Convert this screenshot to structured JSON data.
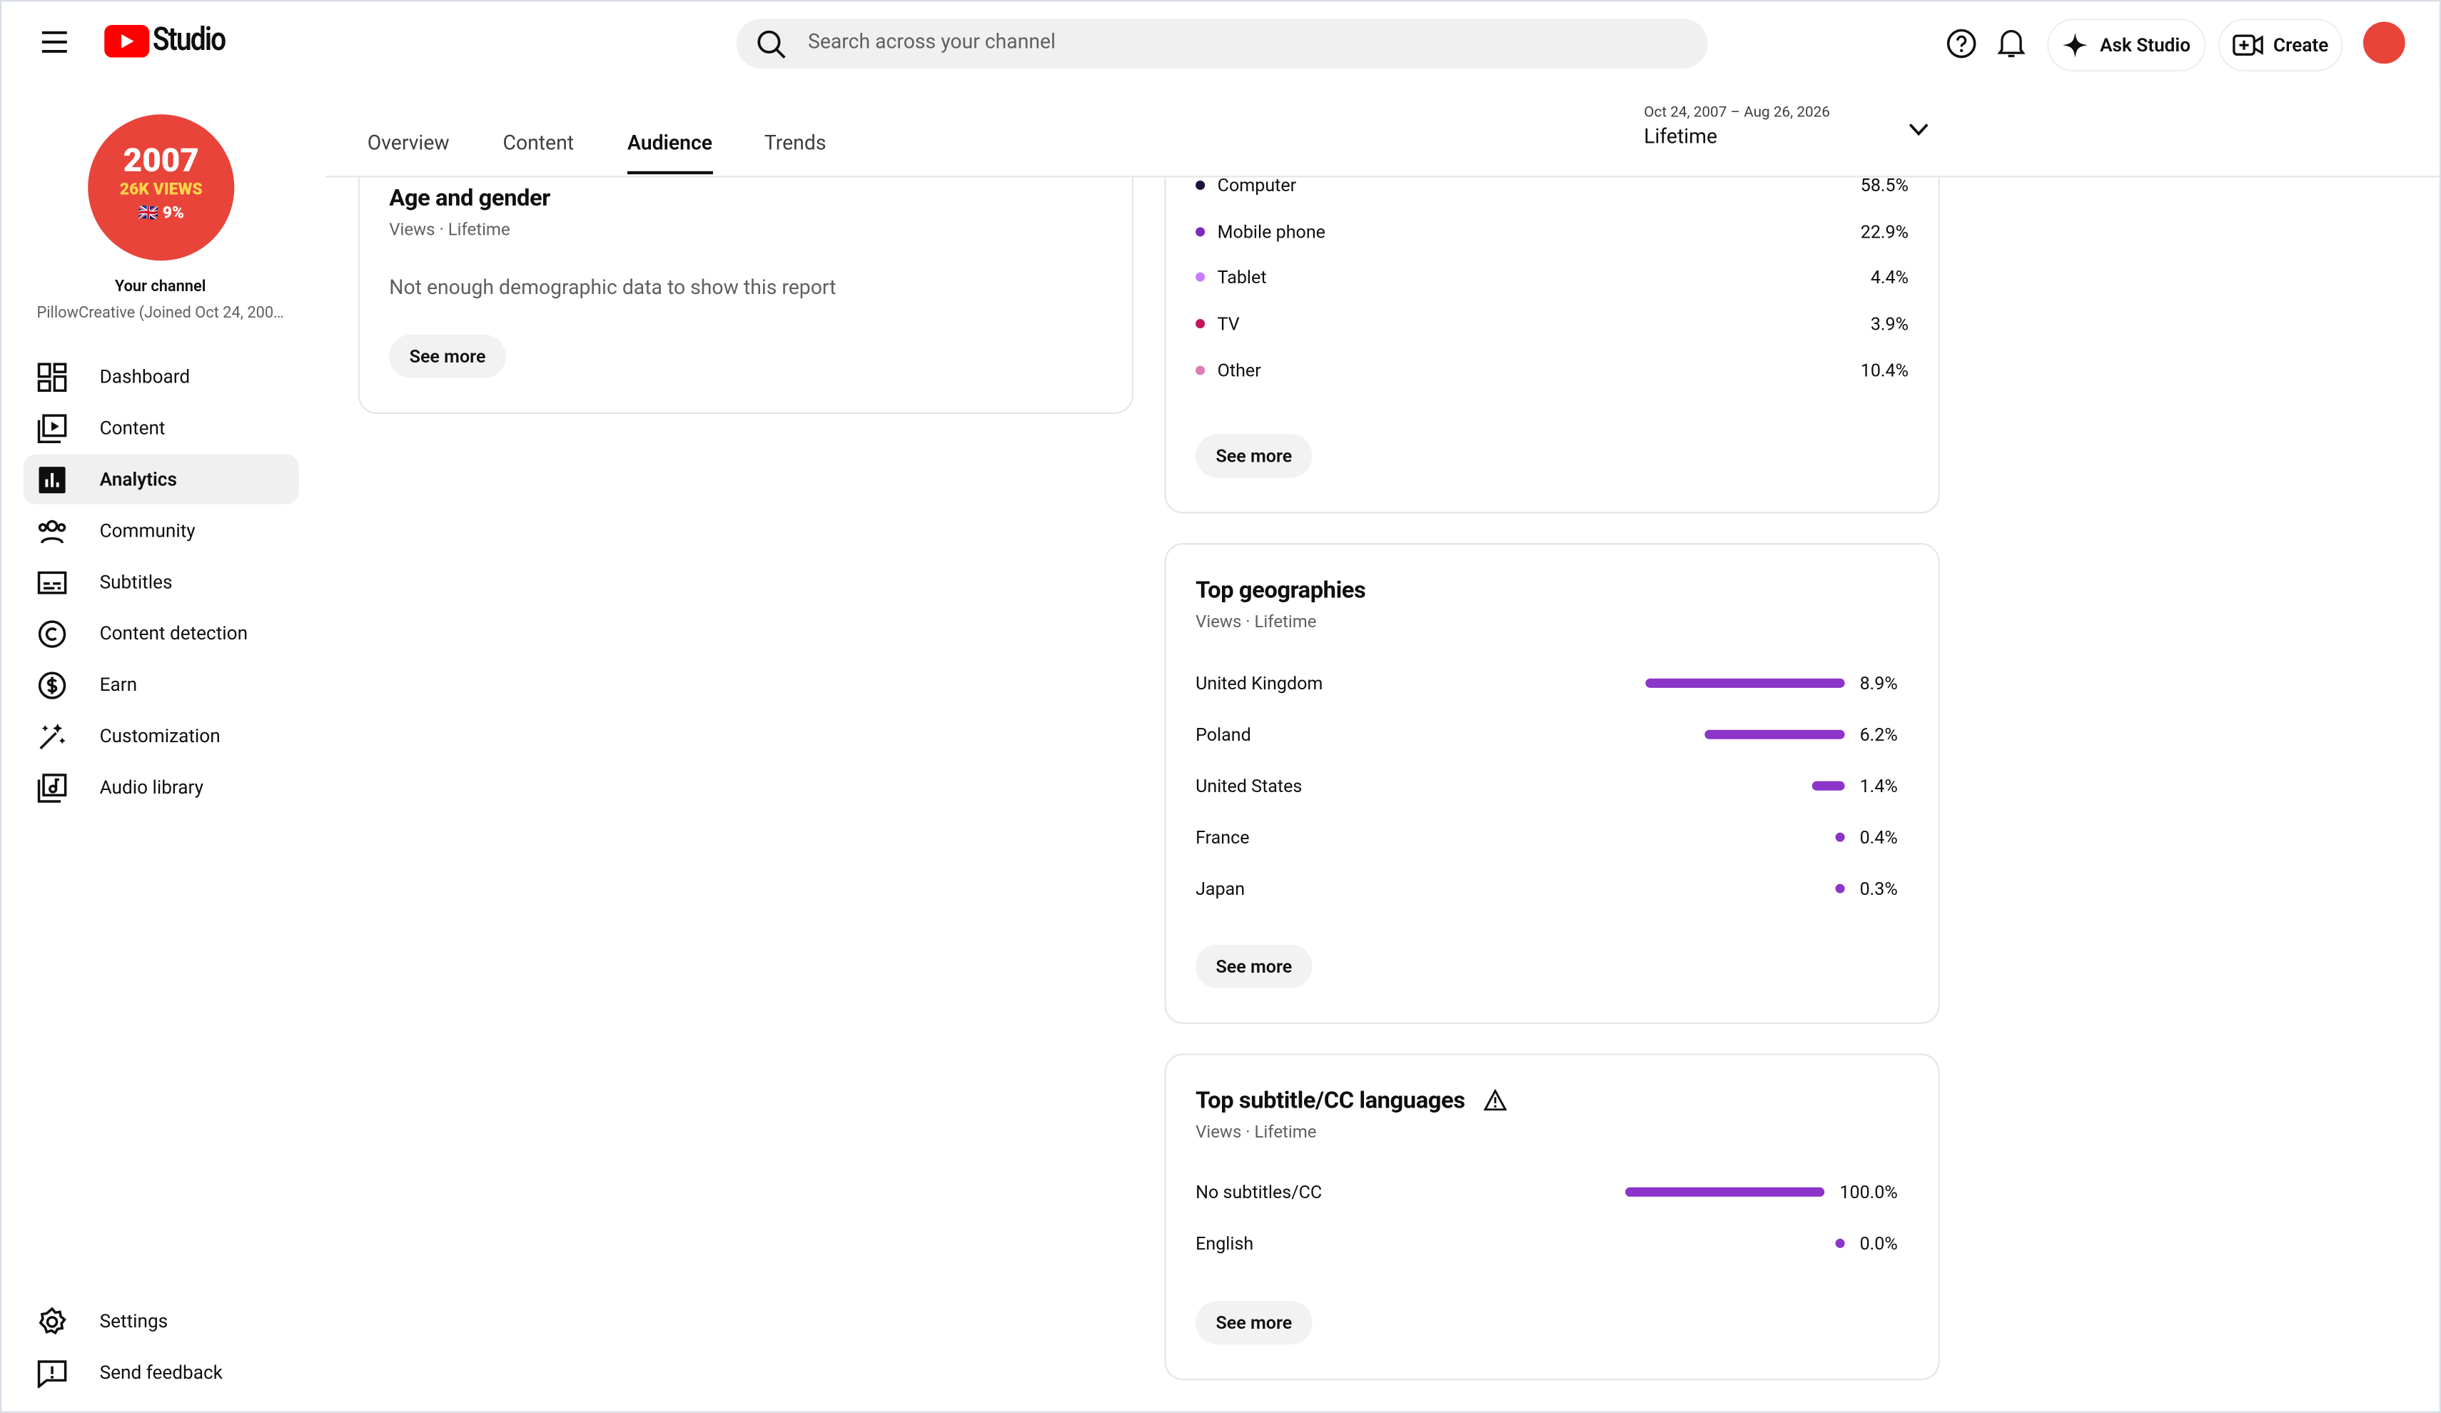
{
  "header": {
    "logo_text": "Studio",
    "search_placeholder": "Search across your channel",
    "ask_studio": "Ask Studio",
    "create": "Create"
  },
  "sidebar": {
    "avatar": {
      "line1": "2007",
      "line2": "26K VIEWS",
      "line3": "🇬🇧 9%"
    },
    "channel_label": "Your channel",
    "channel_name": "PillowCreative (Joined Oct 24, 200…",
    "nav": [
      "Dashboard",
      "Content",
      "Analytics",
      "Community",
      "Subtitles",
      "Content detection",
      "Earn",
      "Customization",
      "Audio library"
    ],
    "footer_nav": [
      "Settings",
      "Send feedback"
    ]
  },
  "tabs": [
    "Overview",
    "Content",
    "Audience",
    "Trends"
  ],
  "date_range": {
    "dates": "Oct 24, 2007 – Aug 26, 2026",
    "label": "Lifetime"
  },
  "age_gender": {
    "title": "Age and gender",
    "subtitle": "Views · Lifetime",
    "message": "Not enough demographic data to show this report",
    "button": "See more"
  },
  "devices": {
    "rows": [
      {
        "name": "Computer",
        "value": "58.5%"
      },
      {
        "name": "Mobile phone",
        "value": "22.9%"
      },
      {
        "name": "Tablet",
        "value": "4.4%"
      },
      {
        "name": "TV",
        "value": "3.9%"
      },
      {
        "name": "Other",
        "value": "10.4%"
      }
    ],
    "button": "See more"
  },
  "geographies": {
    "title": "Top geographies",
    "subtitle": "Views · Lifetime",
    "rows": [
      {
        "name": "United Kingdom",
        "value": 8.9,
        "label": "8.9%"
      },
      {
        "name": "Poland",
        "value": 6.2,
        "label": "6.2%"
      },
      {
        "name": "United States",
        "value": 1.4,
        "label": "1.4%"
      },
      {
        "name": "France",
        "value": 0.4,
        "label": "0.4%"
      },
      {
        "name": "Japan",
        "value": 0.3,
        "label": "0.3%"
      }
    ],
    "button": "See more"
  },
  "subtitle_languages": {
    "title": "Top subtitle/CC languages",
    "subtitle": "Views · Lifetime",
    "rows": [
      {
        "name": "No subtitles/CC",
        "value": 100.0,
        "label": "100.0%"
      },
      {
        "name": "English",
        "value": 0.0,
        "label": "0.0%"
      }
    ],
    "button": "See more"
  }
}
